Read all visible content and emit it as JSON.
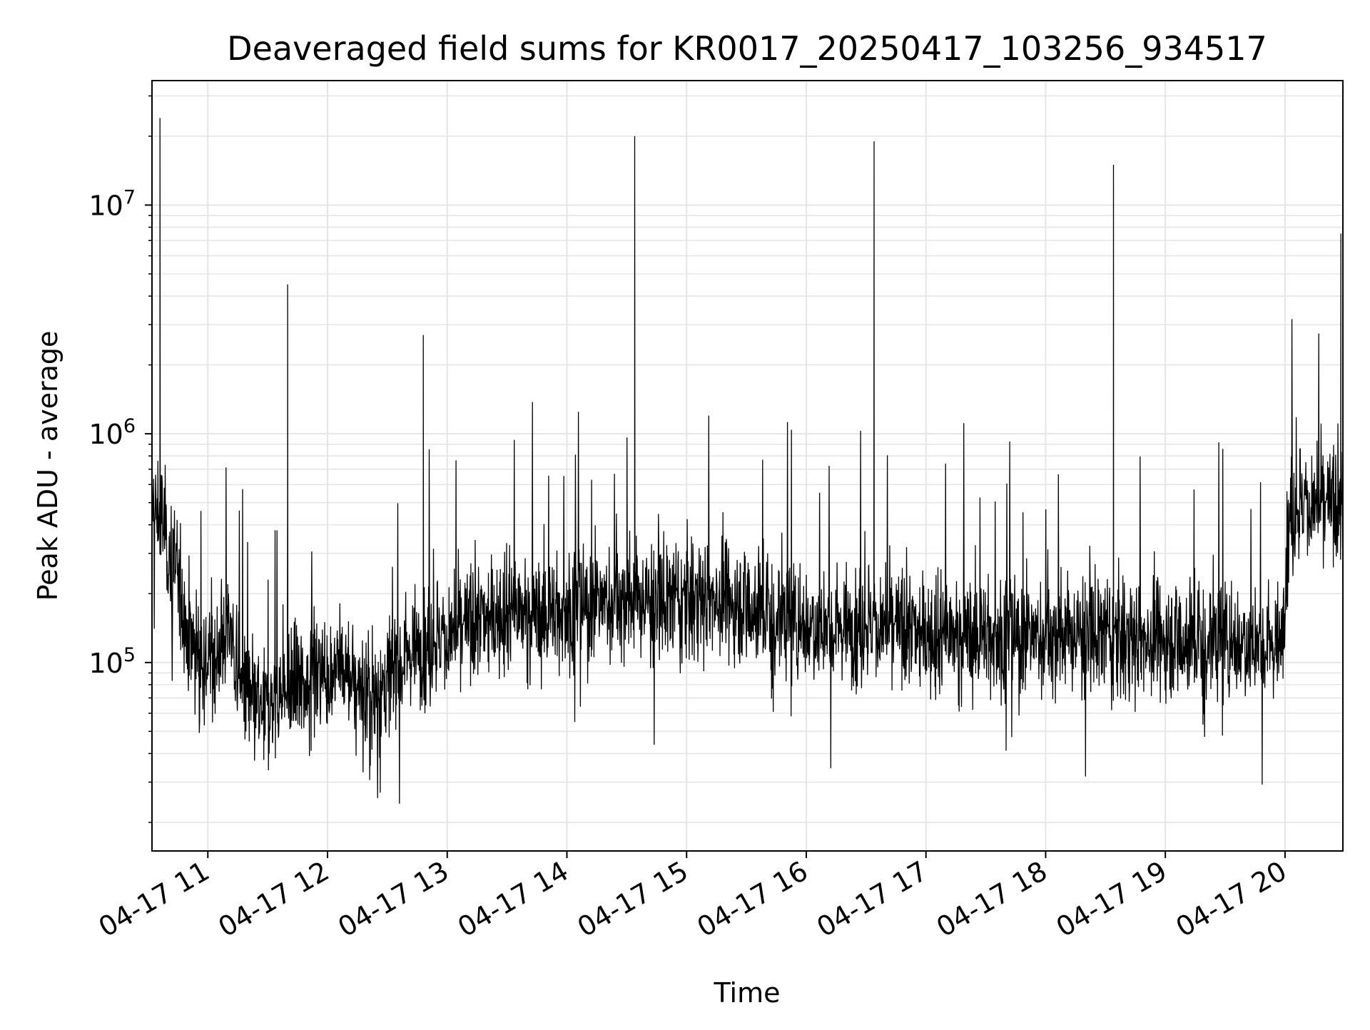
{
  "chart_data": {
    "type": "line",
    "title": "Deaveraged field sums for KR0017_20250417_103256_934517",
    "xlabel": "Time",
    "ylabel": "Peak ADU - average",
    "yscale": "log",
    "xlim": [
      "2025-04-17 10:32",
      "2025-04-17 20:29"
    ],
    "ylim": [
      15000,
      35000000
    ],
    "grid": true,
    "x_ticks": [
      "04-17 11",
      "04-17 12",
      "04-17 13",
      "04-17 14",
      "04-17 15",
      "04-17 16",
      "04-17 17",
      "04-17 18",
      "04-17 19",
      "04-17 20"
    ],
    "y_ticks": [
      {
        "value": 100000,
        "base": "10",
        "exp": "5"
      },
      {
        "value": 1000000,
        "base": "10",
        "exp": "6"
      },
      {
        "value": 10000000,
        "base": "10",
        "exp": "7"
      }
    ],
    "line_color": "#000000",
    "grid_color": "#e5e5e5",
    "series": [
      {
        "x": [
          "2025-04-17 10:33",
          "2025-04-17 10:36",
          "2025-04-17 10:38",
          "2025-04-17 10:40",
          "2025-04-17 10:45",
          "2025-04-17 10:50",
          "2025-04-17 10:55",
          "2025-04-17 11:00",
          "2025-04-17 11:05",
          "2025-04-17 11:10",
          "2025-04-17 11:15",
          "2025-04-17 11:20",
          "2025-04-17 11:25",
          "2025-04-17 11:30",
          "2025-04-17 11:40",
          "2025-04-17 11:48",
          "2025-04-17 11:55",
          "2025-04-17 12:05",
          "2025-04-17 12:15",
          "2025-04-17 12:25",
          "2025-04-17 12:35",
          "2025-04-17 12:45",
          "2025-04-17 12:48",
          "2025-04-17 13:00",
          "2025-04-17 13:15",
          "2025-04-17 13:30",
          "2025-04-17 13:45",
          "2025-04-17 14:00",
          "2025-04-17 14:15",
          "2025-04-17 14:30",
          "2025-04-17 14:34",
          "2025-04-17 14:45",
          "2025-04-17 15:00",
          "2025-04-17 15:15",
          "2025-04-17 15:30",
          "2025-04-17 15:45",
          "2025-04-17 16:00",
          "2025-04-17 16:15",
          "2025-04-17 16:30",
          "2025-04-17 16:34",
          "2025-04-17 16:45",
          "2025-04-17 17:00",
          "2025-04-17 17:15",
          "2025-04-17 17:30",
          "2025-04-17 17:45",
          "2025-04-17 18:00",
          "2025-04-17 18:15",
          "2025-04-17 18:30",
          "2025-04-17 18:34",
          "2025-04-17 18:45",
          "2025-04-17 19:00",
          "2025-04-17 19:15",
          "2025-04-17 19:30",
          "2025-04-17 19:45",
          "2025-04-17 19:58",
          "2025-04-17 20:02",
          "2025-04-17 20:10",
          "2025-04-17 20:20",
          "2025-04-17 20:28"
        ],
        "y": [
          450000,
          24000000,
          400000,
          300000,
          250000,
          130000,
          120000,
          100000,
          110000,
          150000,
          90000,
          70000,
          60000,
          65000,
          4500000,
          80000,
          90000,
          95000,
          80000,
          70000,
          100000,
          120000,
          2700000,
          130000,
          150000,
          170000,
          160000,
          170000,
          180000,
          190000,
          20000000,
          180000,
          190000,
          195000,
          180000,
          160000,
          150000,
          145000,
          150000,
          19000000,
          140000,
          135000,
          130000,
          132000,
          128000,
          130000,
          132000,
          130000,
          15000000,
          128000,
          130000,
          125000,
          128000,
          125000,
          120000,
          450000,
          500000,
          480000,
          7500000
        ]
      }
    ]
  }
}
